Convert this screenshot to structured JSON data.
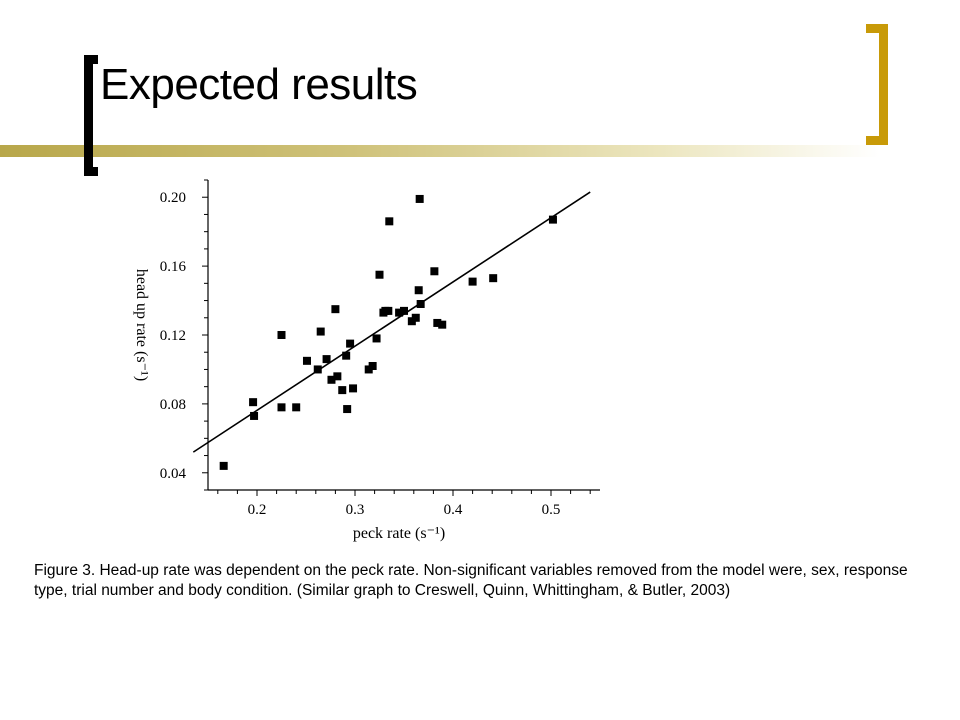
{
  "slide": {
    "title": "Expected results",
    "accent_color": "#c89a08",
    "caption": "Figure 3. Head-up rate was dependent on the peck rate. Non-significant variables removed from the model were, sex, response type, trial number and body condition.  (Similar graph to Creswell, Quinn, Whittingham, & Butler, 2003)"
  },
  "chart_data": {
    "type": "scatter",
    "title": "",
    "xlabel": "peck rate (s⁻¹)",
    "ylabel": "head up rate (s⁻¹)",
    "xlim": [
      0.15,
      0.55
    ],
    "ylim": [
      0.03,
      0.21
    ],
    "x_ticks": [
      0.2,
      0.3,
      0.4,
      0.5
    ],
    "x_tick_labels": [
      "0.2",
      "0.3",
      "0.4",
      "0.5"
    ],
    "y_ticks": [
      0.04,
      0.08,
      0.12,
      0.16,
      0.2
    ],
    "y_tick_labels": [
      "0.04",
      "0.08",
      "0.12",
      "0.16",
      "0.20"
    ],
    "grid": false,
    "marker": "square",
    "points": [
      [
        0.166,
        0.044
      ],
      [
        0.196,
        0.081
      ],
      [
        0.197,
        0.073
      ],
      [
        0.225,
        0.12
      ],
      [
        0.225,
        0.078
      ],
      [
        0.24,
        0.078
      ],
      [
        0.251,
        0.105
      ],
      [
        0.262,
        0.1
      ],
      [
        0.265,
        0.122
      ],
      [
        0.271,
        0.106
      ],
      [
        0.276,
        0.094
      ],
      [
        0.28,
        0.135
      ],
      [
        0.282,
        0.096
      ],
      [
        0.287,
        0.088
      ],
      [
        0.291,
        0.108
      ],
      [
        0.292,
        0.077
      ],
      [
        0.295,
        0.115
      ],
      [
        0.298,
        0.089
      ],
      [
        0.314,
        0.1
      ],
      [
        0.318,
        0.102
      ],
      [
        0.322,
        0.118
      ],
      [
        0.325,
        0.155
      ],
      [
        0.329,
        0.133
      ],
      [
        0.331,
        0.134
      ],
      [
        0.335,
        0.186
      ],
      [
        0.334,
        0.134
      ],
      [
        0.345,
        0.133
      ],
      [
        0.35,
        0.134
      ],
      [
        0.358,
        0.128
      ],
      [
        0.362,
        0.13
      ],
      [
        0.365,
        0.146
      ],
      [
        0.367,
        0.138
      ],
      [
        0.366,
        0.199
      ],
      [
        0.381,
        0.157
      ],
      [
        0.384,
        0.127
      ],
      [
        0.389,
        0.126
      ],
      [
        0.42,
        0.151
      ],
      [
        0.441,
        0.153
      ],
      [
        0.502,
        0.187
      ]
    ],
    "fit_line": {
      "x": [
        0.135,
        0.54
      ],
      "y": [
        0.052,
        0.203
      ]
    }
  }
}
